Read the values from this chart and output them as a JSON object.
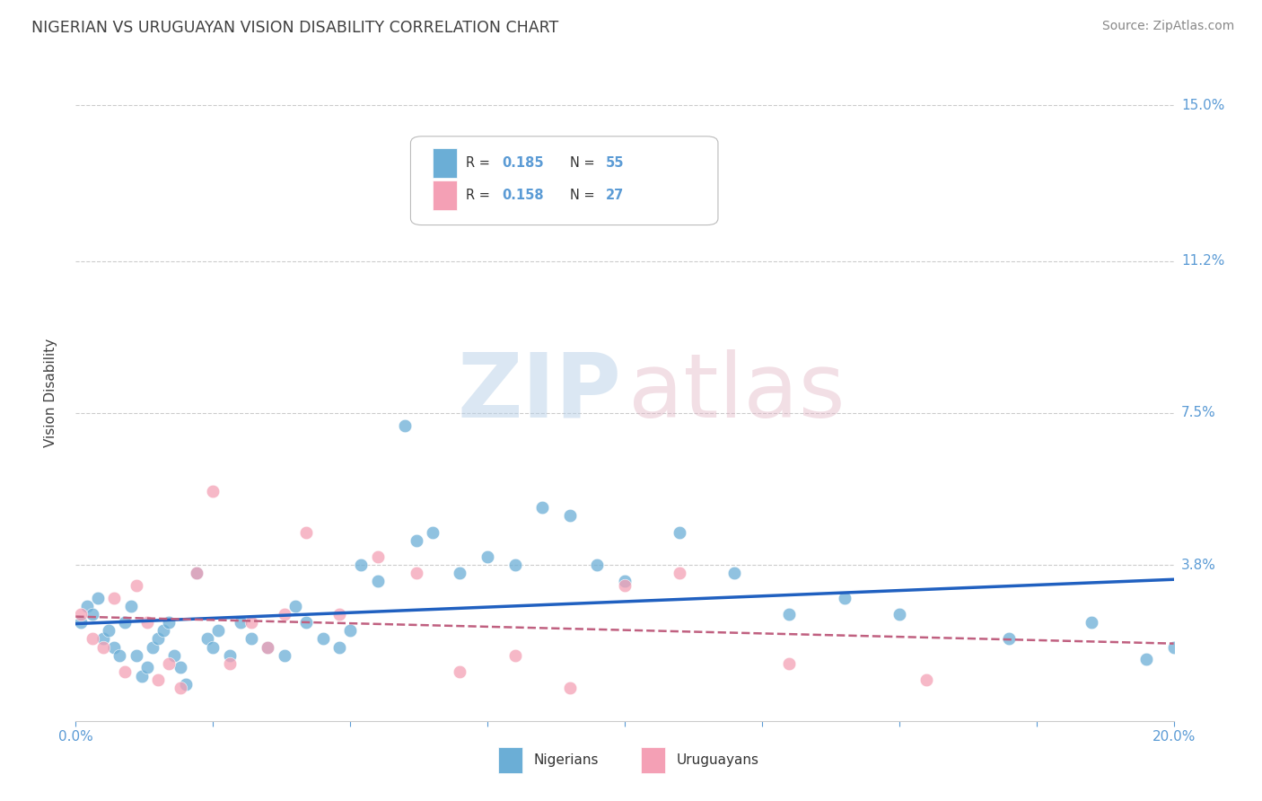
{
  "title": "NIGERIAN VS URUGUAYAN VISION DISABILITY CORRELATION CHART",
  "source": "Source: ZipAtlas.com",
  "ylabel": "Vision Disability",
  "xlim": [
    0.0,
    0.2
  ],
  "ylim": [
    0.0,
    0.16
  ],
  "yticks": [
    0.038,
    0.075,
    0.112,
    0.15
  ],
  "ytick_labels": [
    "3.8%",
    "7.5%",
    "11.2%",
    "15.0%"
  ],
  "xticks": [
    0.0,
    0.025,
    0.05,
    0.075,
    0.1,
    0.125,
    0.15,
    0.175,
    0.2
  ],
  "xtick_labels": [
    "0.0%",
    "",
    "",
    "",
    "",
    "",
    "",
    "",
    "20.0%"
  ],
  "nigeria_R": 0.185,
  "nigeria_N": 55,
  "uruguay_R": 0.158,
  "uruguay_N": 27,
  "nigeria_color": "#6baed6",
  "uruguay_color": "#f4a0b5",
  "nigeria_line_color": "#2060c0",
  "uruguay_line_color": "#c06080",
  "bg_color": "#ffffff",
  "grid_color": "#cccccc",
  "axis_color": "#5b9bd5",
  "title_color": "#404040",
  "nigeria_x": [
    0.001,
    0.002,
    0.003,
    0.004,
    0.005,
    0.006,
    0.007,
    0.008,
    0.009,
    0.01,
    0.011,
    0.012,
    0.013,
    0.014,
    0.015,
    0.016,
    0.017,
    0.018,
    0.019,
    0.02,
    0.022,
    0.024,
    0.025,
    0.026,
    0.028,
    0.03,
    0.032,
    0.035,
    0.038,
    0.04,
    0.042,
    0.045,
    0.048,
    0.05,
    0.052,
    0.055,
    0.06,
    0.062,
    0.065,
    0.07,
    0.075,
    0.08,
    0.085,
    0.09,
    0.095,
    0.1,
    0.11,
    0.12,
    0.13,
    0.14,
    0.15,
    0.17,
    0.185,
    0.195,
    0.2
  ],
  "nigeria_y": [
    0.024,
    0.028,
    0.026,
    0.03,
    0.02,
    0.022,
    0.018,
    0.016,
    0.024,
    0.028,
    0.016,
    0.011,
    0.013,
    0.018,
    0.02,
    0.022,
    0.024,
    0.016,
    0.013,
    0.009,
    0.036,
    0.02,
    0.018,
    0.022,
    0.016,
    0.024,
    0.02,
    0.018,
    0.016,
    0.028,
    0.024,
    0.02,
    0.018,
    0.022,
    0.038,
    0.034,
    0.072,
    0.044,
    0.046,
    0.036,
    0.04,
    0.038,
    0.052,
    0.05,
    0.038,
    0.034,
    0.046,
    0.036,
    0.026,
    0.03,
    0.026,
    0.02,
    0.024,
    0.015,
    0.018
  ],
  "uruguay_x": [
    0.001,
    0.003,
    0.005,
    0.007,
    0.009,
    0.011,
    0.013,
    0.015,
    0.017,
    0.019,
    0.022,
    0.025,
    0.028,
    0.032,
    0.035,
    0.038,
    0.042,
    0.048,
    0.055,
    0.062,
    0.07,
    0.08,
    0.09,
    0.1,
    0.11,
    0.13,
    0.155
  ],
  "uruguay_y": [
    0.026,
    0.02,
    0.018,
    0.03,
    0.012,
    0.033,
    0.024,
    0.01,
    0.014,
    0.008,
    0.036,
    0.056,
    0.014,
    0.024,
    0.018,
    0.026,
    0.046,
    0.026,
    0.04,
    0.036,
    0.012,
    0.016,
    0.008,
    0.033,
    0.036,
    0.014,
    0.01
  ]
}
